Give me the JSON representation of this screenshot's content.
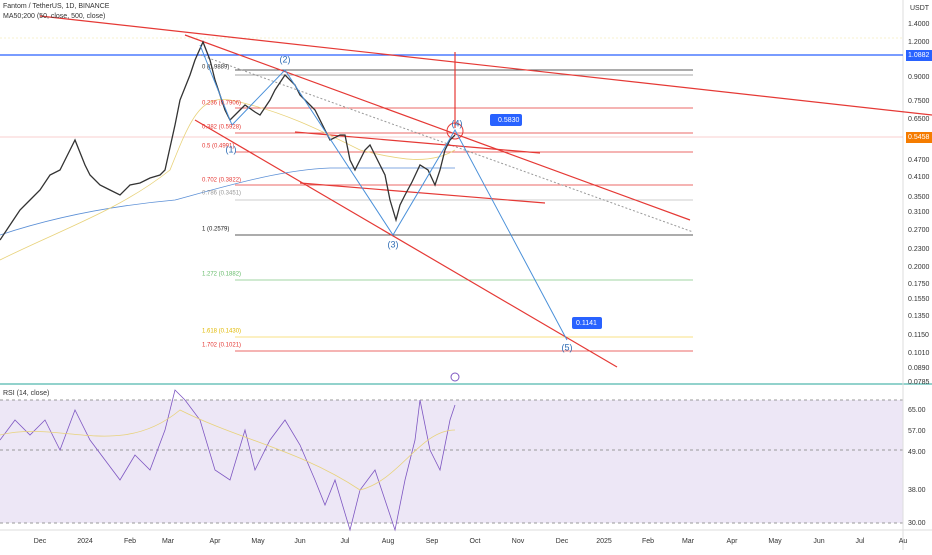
{
  "header": {
    "symbol": "Fantom / TetherUS, 1D, BINANCE",
    "ma": "MA50;200 (50, close, 500, close)",
    "currency": "USDT"
  },
  "price_axis": [
    "1.4000",
    "1.2000",
    "1.0882",
    "0.9000",
    "0.7500",
    "0.6500",
    "0.5458",
    "0.4700",
    "0.4100",
    "0.3500",
    "0.3100",
    "0.2700",
    "0.2300",
    "0.2000",
    "0.1750",
    "0.1550",
    "0.1350",
    "0.1150",
    "0.1010",
    "0.0890",
    "0.0785"
  ],
  "rsi": {
    "label": "RSI (14, close)",
    "axis": [
      "65.00",
      "57.00",
      "49.00",
      "38.00",
      "30.00"
    ]
  },
  "time_axis": [
    "Dec",
    "2024",
    "Feb",
    "Mar",
    "Apr",
    "May",
    "Jun",
    "Jul",
    "Aug",
    "Sep",
    "Oct",
    "Nov",
    "Dec",
    "2025",
    "Feb",
    "Mar",
    "Apr",
    "May",
    "Jun",
    "Jul",
    "Au"
  ],
  "fib": [
    "0 (0.9889)",
    "0.236 (0.7906)",
    "0.382 (0.5928)",
    "0.5 (0.4991)",
    "0.702 (0.3822)",
    "0.786 (0.3451)",
    "1 (0.2579)",
    "1.272 (0.1882)",
    "1.618 (0.1430)",
    "1.702 (0.1021)"
  ],
  "waves": [
    "(1)",
    "(2)",
    "(3)",
    "(4)",
    "(5)"
  ],
  "callouts": [
    "0.5830",
    "0.1141"
  ]
}
